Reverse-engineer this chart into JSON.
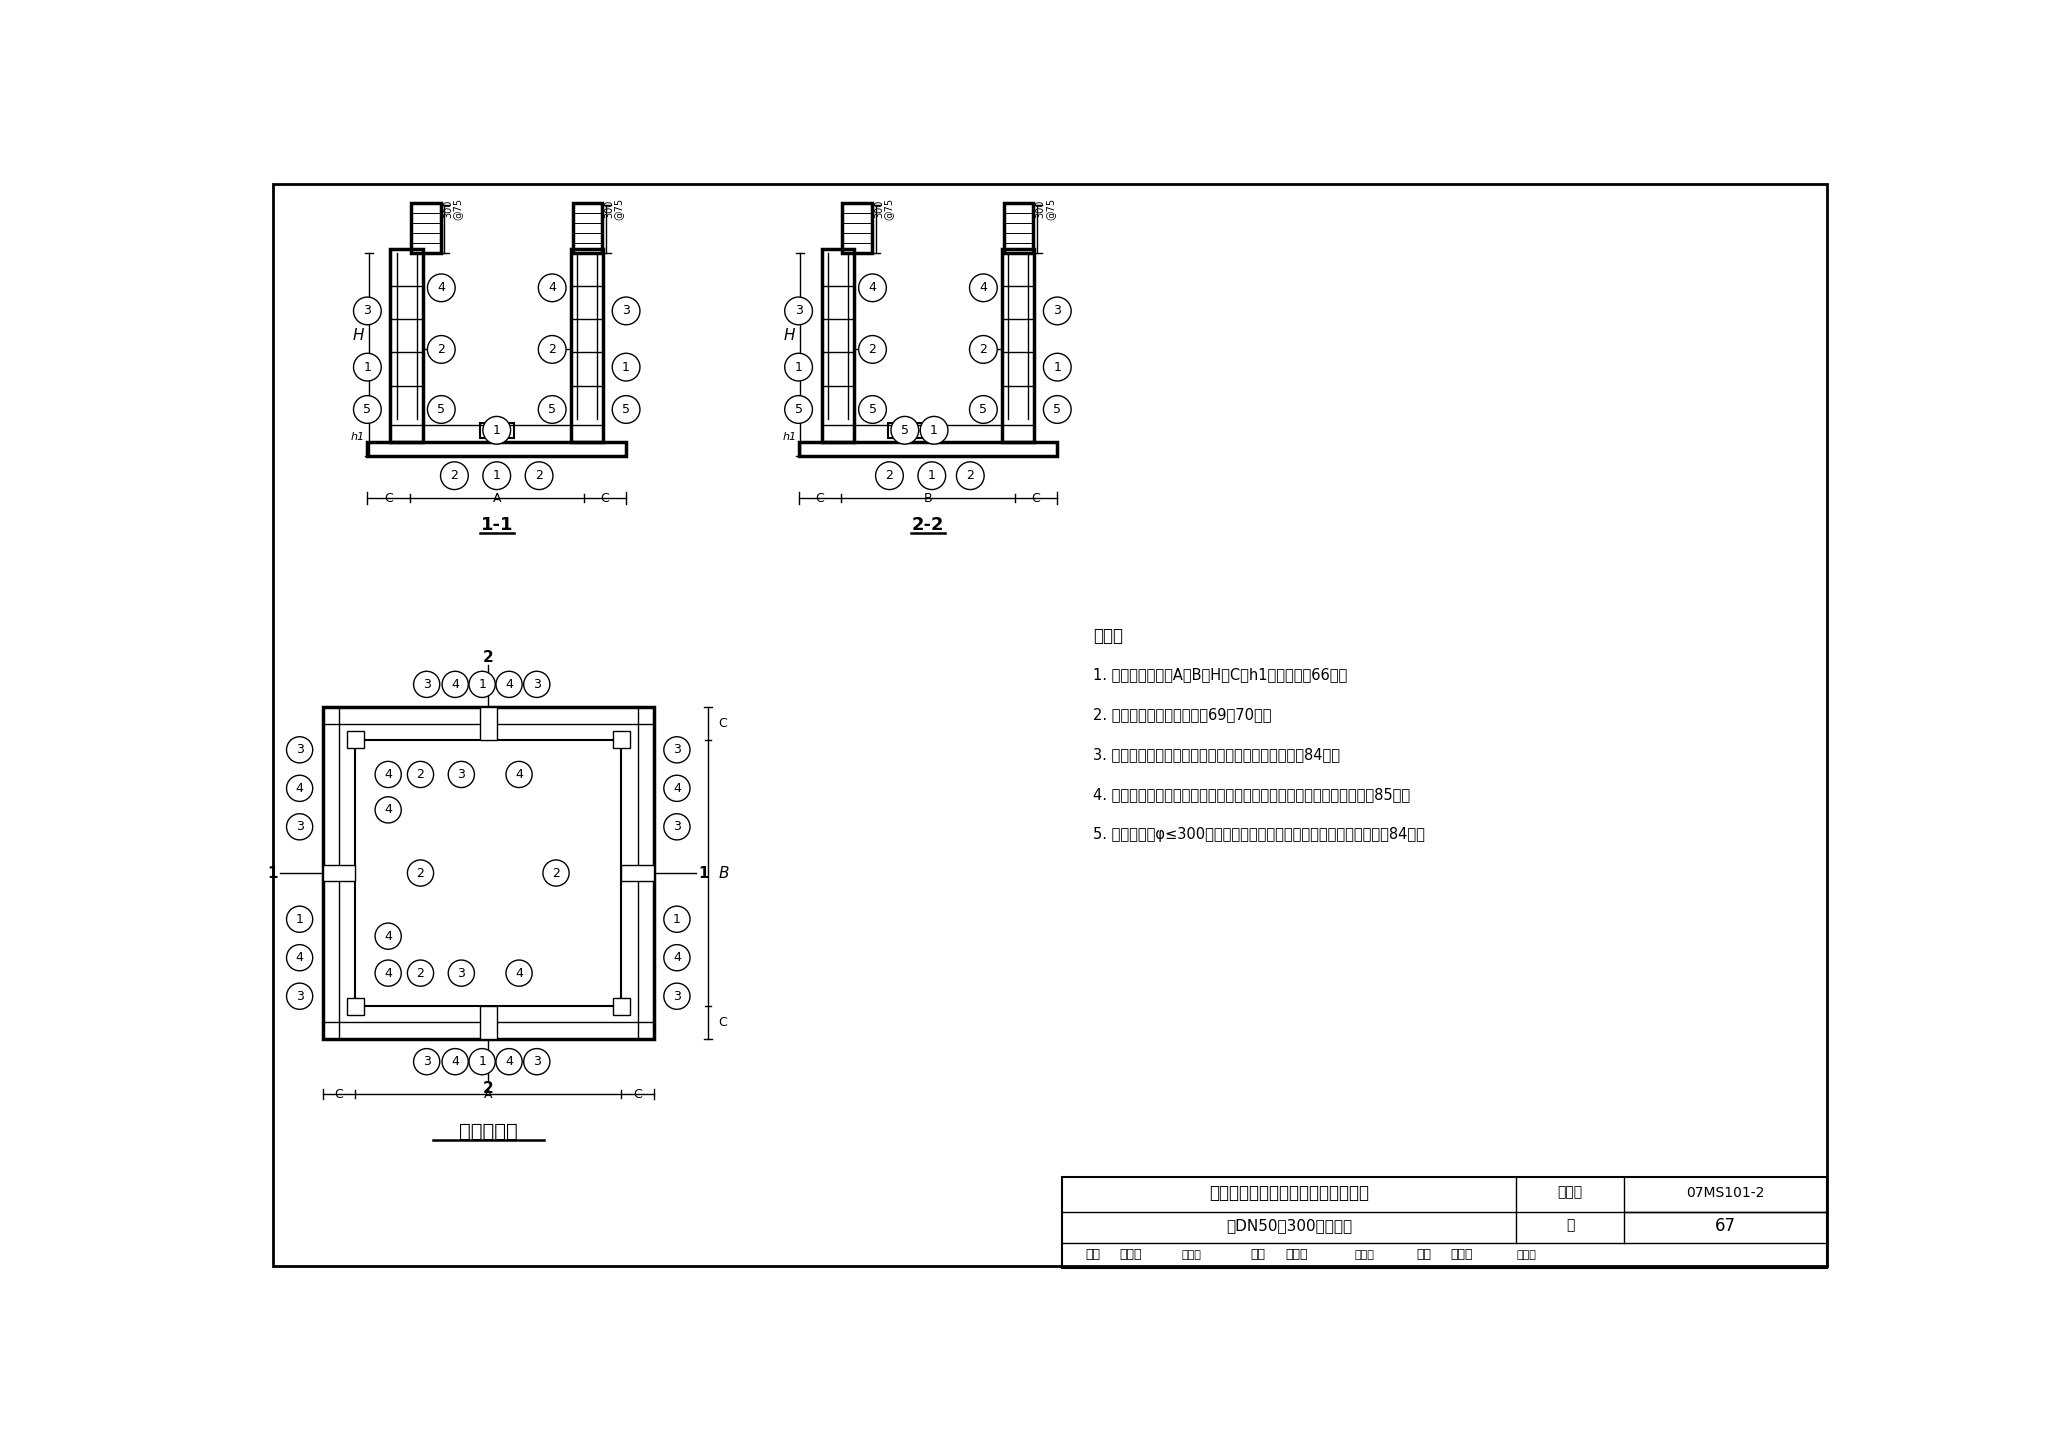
{
  "background_color": "#ffffff",
  "drawing_title": "地面操作钉筋混凝土矩形立式闸阀井",
  "drawing_subtitle": "（DN50～300）配筋图",
  "notes": [
    "说明：",
    "1. 图中所注尺寸：A、B、H、C、h1详见本图集66页。",
    "2. 钉筋表及材料表见本图集69、70页。",
    "3. 配合平面、剑面图，预埋防水套管尺寸表见本图集84页。",
    "4. 按平面、剑面图所示集水坐的位置设置集水坐，集水坐做法见本图集85页。",
    "5. 钉筋过洞（φ≤300）时，要绕过洞口不得切断，洞口加筋见本图集84页。"
  ],
  "label_plan": "平面配筋图",
  "fig_number_text": "07MS101-2",
  "page_number": "67",
  "tu_ji_hao": "图集号",
  "ye": "页",
  "shuoming": "说明："
}
